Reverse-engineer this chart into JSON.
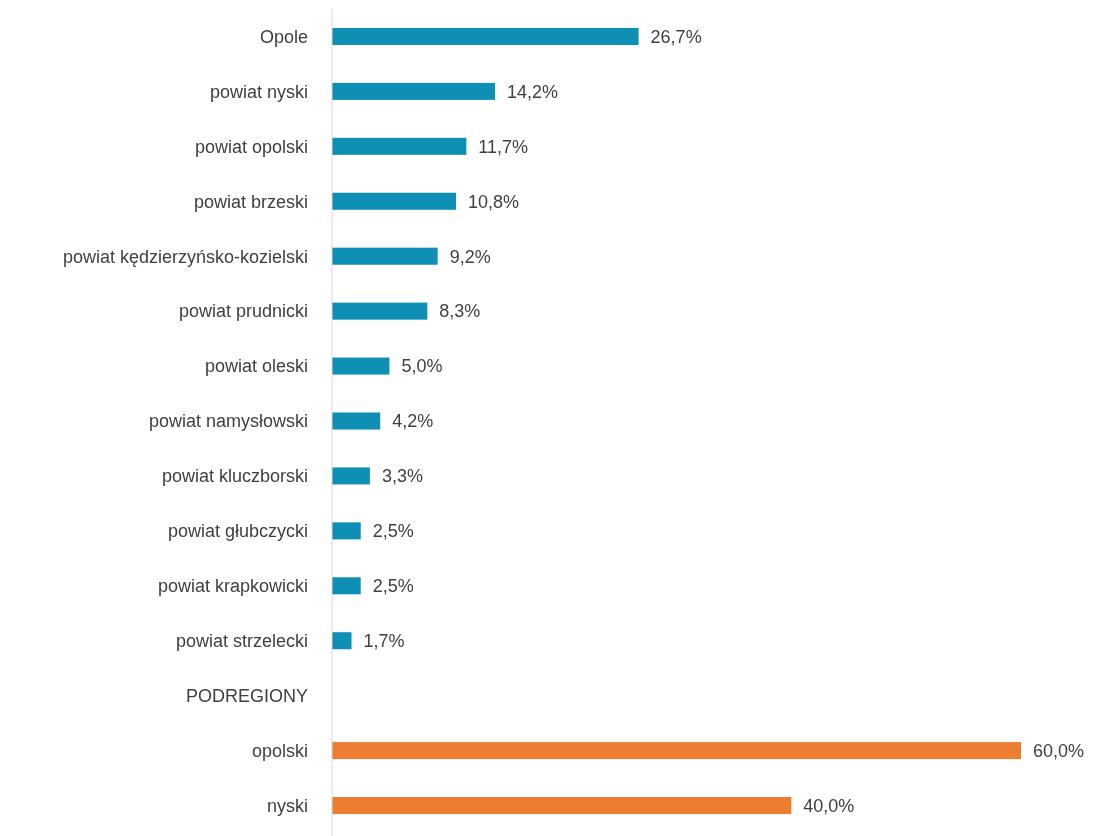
{
  "chart_data": {
    "type": "bar",
    "orientation": "horizontal",
    "categories": [
      "Opole",
      "powiat nyski",
      "powiat opolski",
      "powiat brzeski",
      "powiat kędzierzyńsko-kozielski",
      "powiat prudnicki",
      "powiat oleski",
      "powiat namysłowski",
      "powiat kluczborski",
      "powiat głubczycki",
      "powiat krapkowicki",
      "powiat strzelecki",
      "PODREGIONY",
      "opolski",
      "nyski"
    ],
    "values": [
      26.7,
      14.2,
      11.7,
      10.8,
      9.2,
      8.3,
      5.0,
      4.2,
      3.3,
      2.5,
      2.5,
      1.7,
      null,
      60.0,
      40.0
    ],
    "value_labels": [
      "26,7%",
      "14,2%",
      "11,7%",
      "10,8%",
      "9,2%",
      "8,3%",
      "5,0%",
      "4,2%",
      "3,3%",
      "2,5%",
      "2,5%",
      "1,7%",
      null,
      "60,0%",
      "40,0%"
    ],
    "colors": [
      "#0e8fb3",
      "#0e8fb3",
      "#0e8fb3",
      "#0e8fb3",
      "#0e8fb3",
      "#0e8fb3",
      "#0e8fb3",
      "#0e8fb3",
      "#0e8fb3",
      "#0e8fb3",
      "#0e8fb3",
      "#0e8fb3",
      null,
      "#ed7d31",
      "#ed7d31"
    ]
  }
}
